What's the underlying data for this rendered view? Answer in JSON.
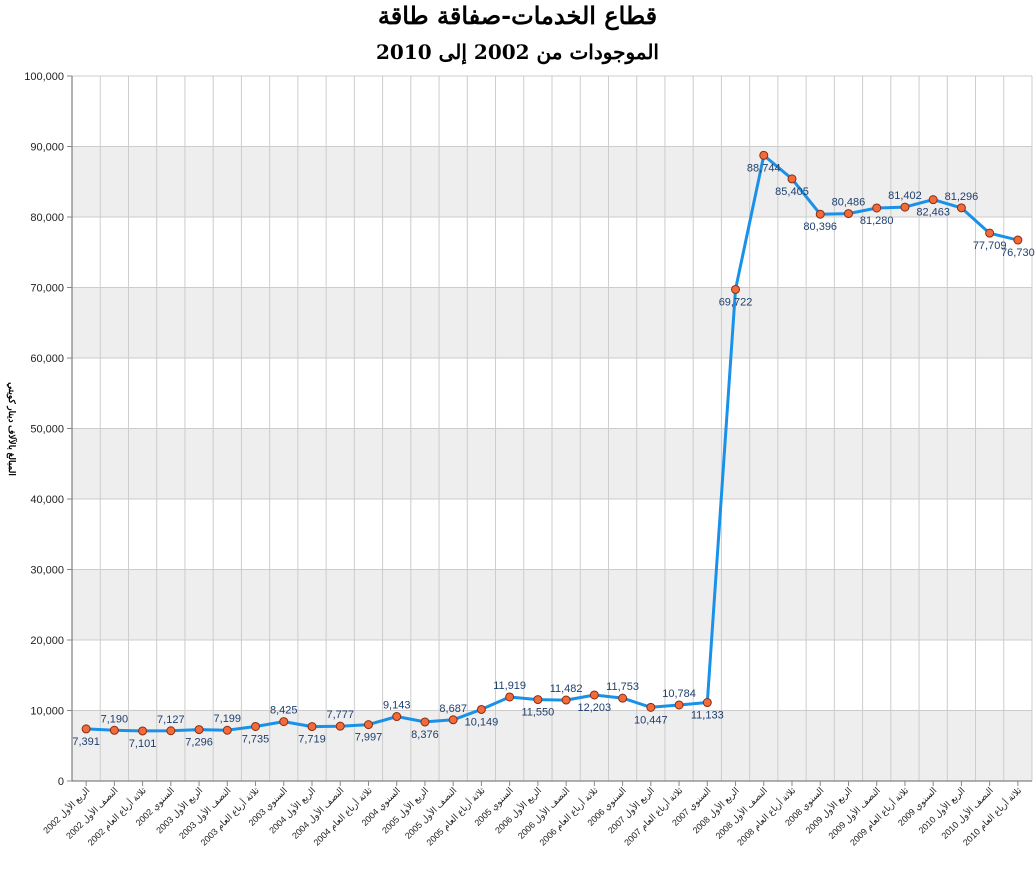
{
  "chart_data": {
    "type": "line",
    "title": "قطاع الخدمات-صفاقة طاقة",
    "subtitle": "الموجودات من 2002 إلى 2010",
    "ylabel": "المبالغ بالآلاف دينار كويتي",
    "xlabel": "",
    "ylim": [
      0,
      100000
    ],
    "y_ticks": [
      "0",
      "10,000",
      "20,000",
      "30,000",
      "40,000",
      "50,000",
      "60,000",
      "70,000",
      "80,000",
      "90,000",
      "100,000"
    ],
    "grid": true,
    "alternating_bands": true,
    "categories": [
      "الربع الأول 2002",
      "النصف الأول 2002",
      "ثلاثة أرباع العام 2002",
      "السنوي 2002",
      "الربع الأول 2003",
      "النصف الأول 2003",
      "ثلاثة أرباع العام 2003",
      "السنوي 2003",
      "الربع الأول 2004",
      "النصف الأول 2004",
      "ثلاثة أرباع العام 2004",
      "السنوي 2004",
      "الربع الأول 2005",
      "النصف الأول 2005",
      "ثلاثة أرباع العام 2005",
      "السنوي 2005",
      "الربع الأول 2006",
      "النصف الأول 2006",
      "ثلاثة أرباع العام 2006",
      "السنوي 2006",
      "الربع الأول 2007",
      "ثلاثة أرباع العام 2007",
      "السنوي 2007",
      "الربع الأول 2008",
      "النصف الأول 2008",
      "ثلاثة أرباع العام 2008",
      "السنوي 2008",
      "الربع الأول 2009",
      "النصف الأول 2009",
      "ثلاثة أرباع العام 2009",
      "السنوي 2009",
      "الربع الأول 2010",
      "النصف الأول 2010",
      "ثلاثة أرباع العام 2010"
    ],
    "series": [
      {
        "values": [
          7391,
          7190,
          7101,
          7127,
          7296,
          7199,
          7735,
          8425,
          7719,
          7777,
          7997,
          9143,
          8376,
          8687,
          10149,
          11919,
          11550,
          11482,
          12203,
          11753,
          10447,
          10784,
          11133,
          69722,
          88744,
          85405,
          80396,
          80486,
          81280,
          81402,
          82463,
          81296,
          77709,
          76730
        ],
        "labels": [
          "7,391",
          "7,190",
          "7,101",
          "7,127",
          "7,296",
          "7,199",
          "7,735",
          "8,425",
          "7,719",
          "7,777",
          "7,997",
          "9,143",
          "8,376",
          "8,687",
          "10,149",
          "11,919",
          "11,550",
          "11,482",
          "12,203",
          "11,753",
          "10,447",
          "10,784",
          "11,133",
          "69,722",
          "88,744",
          "85,405",
          "80,396",
          "80,486",
          "81,280",
          "81,402",
          "82,463",
          "81,296",
          "77,709",
          "76,730"
        ],
        "label_positions": [
          "below",
          "above",
          "below",
          "above",
          "below",
          "above",
          "below",
          "above",
          "below",
          "above",
          "below",
          "above",
          "below",
          "above",
          "below",
          "above",
          "below",
          "above",
          "below",
          "above",
          "below",
          "above",
          "below",
          "below",
          "below",
          "below",
          "below",
          "above",
          "below",
          "above",
          "below",
          "above",
          "below",
          "below"
        ]
      }
    ],
    "colors": {
      "line": "#1a91e8",
      "marker_fill": "#f26b3a",
      "marker_stroke": "#8a2c10",
      "data_label": "#1f3f6e",
      "band": "#eeeeee",
      "grid": "#cccccc"
    }
  }
}
